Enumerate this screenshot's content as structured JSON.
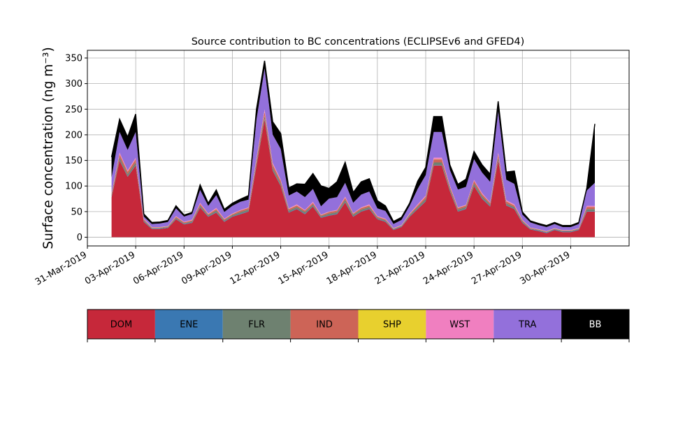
{
  "chart_data": {
    "type": "area",
    "stacked": true,
    "title": "Source contribution to BC concentrations (ECLIPSEv6 and GFED4)",
    "ylabel": "Surface concentration (ng m⁻³)",
    "xlabel": "",
    "x_axis": {
      "type": "date",
      "start": "2019-03-31",
      "end": "2019-05-03",
      "visible_from": "2019-03-31T00:00",
      "visible_to": "2019-05-03T15:00"
    },
    "ylim": [
      -17,
      365
    ],
    "yticks": [
      0,
      50,
      100,
      150,
      200,
      250,
      300,
      350
    ],
    "xticks": [
      "31-Mar-2019",
      "03-Apr-2019",
      "06-Apr-2019",
      "09-Apr-2019",
      "12-Apr-2019",
      "15-Apr-2019",
      "18-Apr-2019",
      "21-Apr-2019",
      "24-Apr-2019",
      "27-Apr-2019",
      "30-Apr-2019"
    ],
    "xtick_dates": [
      "2019-03-31",
      "2019-04-03",
      "2019-04-06",
      "2019-04-09",
      "2019-04-12",
      "2019-04-15",
      "2019-04-18",
      "2019-04-21",
      "2019-04-24",
      "2019-04-27",
      "2019-04-30"
    ],
    "grid": true,
    "legend": {
      "placement": "bottom-colorbar"
    },
    "x": [
      "2019-04-01T12:00",
      "2019-04-02T00:00",
      "2019-04-02T12:00",
      "2019-04-03T00:00",
      "2019-04-03T12:00",
      "2019-04-04T00:00",
      "2019-04-04T12:00",
      "2019-04-05T00:00",
      "2019-04-05T12:00",
      "2019-04-06T00:00",
      "2019-04-06T12:00",
      "2019-04-07T00:00",
      "2019-04-07T12:00",
      "2019-04-08T00:00",
      "2019-04-08T12:00",
      "2019-04-09T00:00",
      "2019-04-09T12:00",
      "2019-04-10T00:00",
      "2019-04-10T12:00",
      "2019-04-11T00:00",
      "2019-04-11T12:00",
      "2019-04-12T00:00",
      "2019-04-12T12:00",
      "2019-04-13T00:00",
      "2019-04-13T12:00",
      "2019-04-14T00:00",
      "2019-04-14T12:00",
      "2019-04-15T00:00",
      "2019-04-15T12:00",
      "2019-04-16T00:00",
      "2019-04-16T12:00",
      "2019-04-17T00:00",
      "2019-04-17T12:00",
      "2019-04-18T00:00",
      "2019-04-18T12:00",
      "2019-04-19T00:00",
      "2019-04-19T12:00",
      "2019-04-20T00:00",
      "2019-04-20T12:00",
      "2019-04-21T00:00",
      "2019-04-21T12:00",
      "2019-04-22T00:00",
      "2019-04-22T12:00",
      "2019-04-23T00:00",
      "2019-04-23T12:00",
      "2019-04-24T00:00",
      "2019-04-24T12:00",
      "2019-04-25T00:00",
      "2019-04-25T12:00",
      "2019-04-26T00:00",
      "2019-04-26T12:00",
      "2019-04-27T00:00",
      "2019-04-27T12:00",
      "2019-04-28T00:00",
      "2019-04-28T12:00",
      "2019-04-29T00:00",
      "2019-04-29T12:00",
      "2019-04-30T00:00",
      "2019-04-30T12:00",
      "2019-05-01T00:00",
      "2019-05-01T12:00"
    ],
    "series": [
      {
        "name": "DOM",
        "color": "#c6283a",
        "values": [
          78,
          150,
          118,
          140,
          30,
          16,
          16,
          18,
          35,
          25,
          28,
          58,
          40,
          48,
          30,
          40,
          45,
          50,
          140,
          230,
          130,
          100,
          48,
          55,
          45,
          60,
          38,
          42,
          45,
          68,
          40,
          50,
          55,
          35,
          30,
          14,
          20,
          40,
          55,
          70,
          140,
          140,
          90,
          50,
          55,
          100,
          75,
          60,
          150,
          62,
          55,
          28,
          15,
          12,
          8,
          14,
          10,
          10,
          14,
          50,
          50
        ]
      },
      {
        "name": "ENE",
        "color": "#3a78b2",
        "values": [
          1,
          1,
          1,
          1,
          1,
          1,
          1,
          1,
          1,
          1,
          1,
          1,
          1,
          1,
          1,
          1,
          1,
          1,
          1,
          1,
          1,
          1,
          1,
          1,
          1,
          1,
          1,
          1,
          1,
          1,
          1,
          1,
          1,
          1,
          1,
          1,
          1,
          1,
          1,
          1,
          1,
          1,
          1,
          1,
          1,
          1,
          1,
          1,
          1,
          1,
          1,
          1,
          1,
          1,
          1,
          1,
          1,
          1,
          1,
          1,
          1
        ]
      },
      {
        "name": "FLR",
        "color": "#6e8170",
        "values": [
          3,
          5,
          4,
          5,
          2,
          1,
          1,
          1,
          2,
          1,
          2,
          3,
          2,
          3,
          2,
          2,
          3,
          3,
          5,
          6,
          5,
          4,
          3,
          3,
          3,
          3,
          2,
          3,
          3,
          4,
          3,
          3,
          3,
          2,
          2,
          1,
          1,
          2,
          3,
          4,
          5,
          5,
          4,
          3,
          3,
          4,
          4,
          3,
          5,
          3,
          3,
          2,
          1,
          1,
          1,
          1,
          1,
          1,
          1,
          4,
          4
        ]
      },
      {
        "name": "IND",
        "color": "#cd6457",
        "values": [
          3,
          6,
          5,
          6,
          2,
          1,
          1,
          1,
          2,
          2,
          2,
          3,
          2,
          3,
          2,
          2,
          3,
          3,
          6,
          8,
          6,
          5,
          3,
          3,
          3,
          3,
          2,
          3,
          3,
          4,
          2,
          3,
          3,
          2,
          2,
          1,
          1,
          2,
          3,
          4,
          6,
          6,
          4,
          3,
          3,
          5,
          4,
          3,
          6,
          4,
          3,
          2,
          1,
          1,
          1,
          1,
          1,
          1,
          1,
          4,
          4
        ]
      },
      {
        "name": "SHP",
        "color": "#e8d02e",
        "values": [
          0.5,
          0.5,
          0.5,
          0.5,
          0.3,
          0.3,
          0.3,
          0.3,
          0.3,
          0.3,
          0.3,
          0.3,
          0.3,
          0.3,
          0.3,
          0.3,
          0.3,
          0.3,
          0.5,
          0.5,
          0.5,
          0.5,
          0.3,
          0.3,
          0.3,
          0.3,
          0.3,
          0.3,
          0.3,
          0.3,
          0.3,
          0.3,
          0.3,
          0.3,
          0.3,
          0.3,
          0.3,
          0.3,
          0.3,
          0.3,
          0.5,
          0.5,
          0.3,
          0.3,
          0.3,
          0.3,
          0.3,
          0.3,
          0.5,
          0.3,
          0.3,
          0.3,
          0.3,
          0.3,
          0.3,
          0.3,
          0.3,
          0.3,
          0.3,
          0.3,
          0.3
        ]
      },
      {
        "name": "WST",
        "color": "#f07fc0",
        "values": [
          1,
          3,
          2,
          3,
          1,
          0.5,
          0.5,
          0.5,
          1,
          1,
          1,
          2,
          1,
          2,
          1,
          1,
          1,
          1,
          3,
          4,
          3,
          2,
          1,
          2,
          1,
          2,
          1,
          1,
          1,
          2,
          1,
          1,
          2,
          1,
          1,
          0.5,
          0.5,
          1,
          2,
          2,
          3,
          3,
          2,
          1,
          1,
          2,
          2,
          1,
          3,
          2,
          2,
          1,
          0.5,
          0.5,
          0.5,
          0.5,
          0.5,
          0.5,
          0.5,
          2,
          2
        ]
      },
      {
        "name": "TRA",
        "color": "#9370db",
        "values": [
          30,
          40,
          40,
          50,
          4,
          6,
          7,
          8,
          15,
          10,
          11,
          25,
          15,
          25,
          13,
          15,
          16,
          15,
          75,
          80,
          55,
          60,
          25,
          25,
          25,
          25,
          16,
          25,
          25,
          27,
          20,
          25,
          25,
          15,
          15,
          8,
          10,
          15,
          30,
          40,
          50,
          50,
          30,
          35,
          35,
          40,
          40,
          40,
          80,
          40,
          40,
          10,
          10,
          8,
          8,
          8,
          6,
          6,
          8,
          30,
          45
        ]
      },
      {
        "name": "BB",
        "color": "#000000",
        "values": [
          40,
          25,
          25,
          35,
          5,
          3,
          3,
          3,
          5,
          3,
          3,
          10,
          5,
          10,
          5,
          5,
          5,
          8,
          20,
          15,
          25,
          30,
          15,
          15,
          25,
          30,
          40,
          20,
          30,
          40,
          20,
          25,
          25,
          15,
          10,
          5,
          5,
          5,
          15,
          15,
          30,
          30,
          10,
          10,
          15,
          15,
          15,
          15,
          20,
          15,
          25,
          5,
          3,
          3,
          3,
          3,
          3,
          3,
          3,
          5,
          115
        ]
      }
    ]
  }
}
